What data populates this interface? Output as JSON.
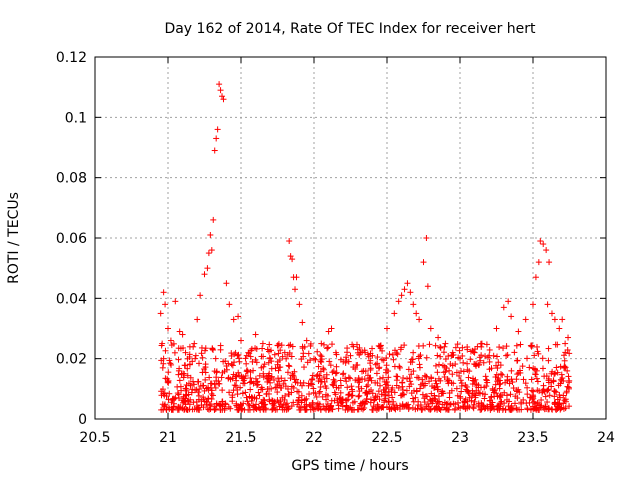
{
  "chart_data": {
    "type": "scatter",
    "title": "Day 162 of 2014, Rate Of TEC Index for receiver hert",
    "xlabel": "GPS time / hours",
    "ylabel": "ROTI / TECUs",
    "xlim": [
      20.5,
      24
    ],
    "ylim": [
      0,
      0.12
    ],
    "xticks": [
      20.5,
      21,
      21.5,
      22,
      22.5,
      23,
      23.5,
      24
    ],
    "xtick_labels": [
      "20.5",
      "21",
      "21.5",
      "22",
      "22.5",
      "23",
      "23.5",
      "24"
    ],
    "yticks": [
      0,
      0.02,
      0.04,
      0.06,
      0.08,
      0.1,
      0.12
    ],
    "ytick_labels": [
      "0",
      "0.02",
      "0.04",
      "0.06",
      "0.08",
      "0.1",
      "0.12"
    ],
    "grid": true,
    "marker": "+",
    "color": "#ff0000",
    "series": [
      {
        "name": "ROTI",
        "points": [
          [
            20.95,
            0.035
          ],
          [
            20.97,
            0.042
          ],
          [
            20.98,
            0.038
          ],
          [
            20.96,
            0.025
          ],
          [
            20.97,
            0.02
          ],
          [
            21.0,
            0.03
          ],
          [
            21.02,
            0.026
          ],
          [
            21.05,
            0.039
          ],
          [
            21.08,
            0.029
          ],
          [
            21.1,
            0.028
          ],
          [
            21.12,
            0.022
          ],
          [
            21.15,
            0.018
          ],
          [
            21.18,
            0.025
          ],
          [
            21.2,
            0.033
          ],
          [
            21.22,
            0.041
          ],
          [
            21.25,
            0.048
          ],
          [
            21.27,
            0.05
          ],
          [
            21.28,
            0.055
          ],
          [
            21.29,
            0.061
          ],
          [
            21.3,
            0.056
          ],
          [
            21.31,
            0.066
          ],
          [
            21.32,
            0.089
          ],
          [
            21.33,
            0.093
          ],
          [
            21.34,
            0.096
          ],
          [
            21.35,
            0.111
          ],
          [
            21.36,
            0.109
          ],
          [
            21.37,
            0.107
          ],
          [
            21.38,
            0.106
          ],
          [
            21.4,
            0.045
          ],
          [
            21.42,
            0.038
          ],
          [
            21.45,
            0.033
          ],
          [
            21.48,
            0.034
          ],
          [
            21.5,
            0.026
          ],
          [
            21.55,
            0.022
          ],
          [
            21.6,
            0.028
          ],
          [
            21.65,
            0.025
          ],
          [
            21.7,
            0.02
          ],
          [
            21.75,
            0.018
          ],
          [
            21.8,
            0.022
          ],
          [
            21.83,
            0.059
          ],
          [
            21.84,
            0.054
          ],
          [
            21.85,
            0.053
          ],
          [
            21.86,
            0.047
          ],
          [
            21.87,
            0.043
          ],
          [
            21.88,
            0.047
          ],
          [
            21.9,
            0.038
          ],
          [
            21.92,
            0.032
          ],
          [
            21.95,
            0.026
          ],
          [
            22.0,
            0.02
          ],
          [
            22.05,
            0.025
          ],
          [
            22.1,
            0.029
          ],
          [
            22.12,
            0.03
          ],
          [
            22.15,
            0.022
          ],
          [
            22.2,
            0.019
          ],
          [
            22.25,
            0.021
          ],
          [
            22.3,
            0.023
          ],
          [
            22.35,
            0.022
          ],
          [
            22.4,
            0.021
          ],
          [
            22.45,
            0.024
          ],
          [
            22.5,
            0.03
          ],
          [
            22.55,
            0.035
          ],
          [
            22.58,
            0.039
          ],
          [
            22.6,
            0.041
          ],
          [
            22.62,
            0.043
          ],
          [
            22.64,
            0.045
          ],
          [
            22.66,
            0.042
          ],
          [
            22.68,
            0.038
          ],
          [
            22.7,
            0.035
          ],
          [
            22.72,
            0.033
          ],
          [
            22.75,
            0.052
          ],
          [
            22.77,
            0.06
          ],
          [
            22.78,
            0.044
          ],
          [
            22.8,
            0.03
          ],
          [
            22.85,
            0.027
          ],
          [
            22.9,
            0.025
          ],
          [
            22.95,
            0.022
          ],
          [
            23.0,
            0.02
          ],
          [
            23.05,
            0.023
          ],
          [
            23.1,
            0.022
          ],
          [
            23.15,
            0.025
          ],
          [
            23.2,
            0.021
          ],
          [
            23.25,
            0.03
          ],
          [
            23.3,
            0.037
          ],
          [
            23.33,
            0.039
          ],
          [
            23.35,
            0.034
          ],
          [
            23.4,
            0.029
          ],
          [
            23.45,
            0.033
          ],
          [
            23.5,
            0.038
          ],
          [
            23.52,
            0.047
          ],
          [
            23.54,
            0.052
          ],
          [
            23.55,
            0.059
          ],
          [
            23.57,
            0.058
          ],
          [
            23.59,
            0.056
          ],
          [
            23.61,
            0.052
          ],
          [
            23.6,
            0.038
          ],
          [
            23.63,
            0.035
          ],
          [
            23.65,
            0.033
          ],
          [
            23.68,
            0.03
          ],
          [
            23.7,
            0.033
          ],
          [
            23.72,
            0.025
          ],
          [
            23.74,
            0.027
          ]
        ]
      }
    ],
    "background_band": {
      "x_range": [
        20.95,
        23.75
      ],
      "y_min": 0.003,
      "y_max": 0.025,
      "note": "dense cloud of low-level ROTI samples"
    }
  }
}
